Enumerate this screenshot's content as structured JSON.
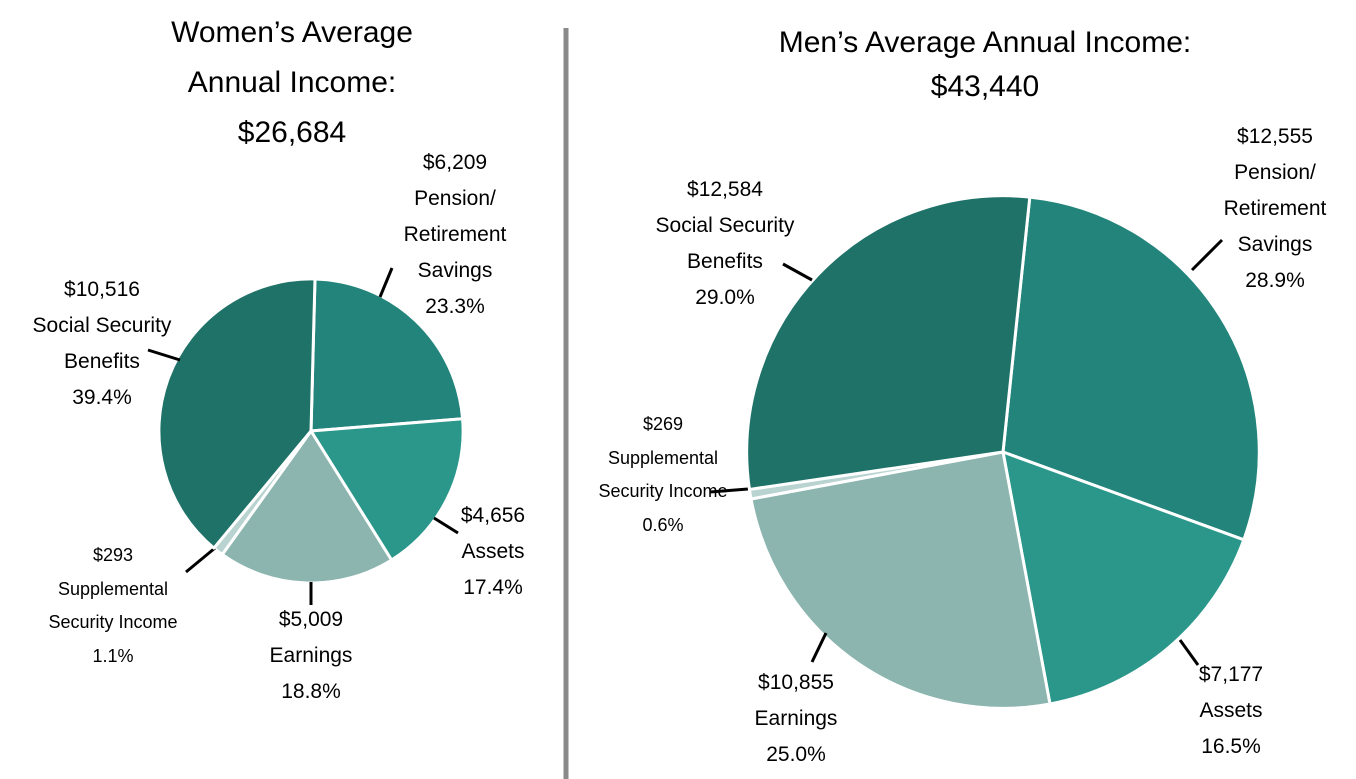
{
  "chart_data": [
    {
      "type": "pie",
      "title": "Women’s Average Annual Income:",
      "total": 26684,
      "total_label": "$26,684",
      "categories": [
        "Pension/ Retirement Savings",
        "Assets",
        "Earnings",
        "Supplemental Security Income",
        "Social Security Benefits"
      ],
      "values": [
        23.3,
        17.4,
        18.8,
        1.1,
        39.4
      ],
      "value_labels": [
        "23.3%",
        "17.4%",
        "18.8%",
        "1.1%",
        "39.4%"
      ],
      "amounts": [
        6209,
        4656,
        5009,
        293,
        10516
      ],
      "amount_labels": [
        "$6,209",
        "$4,656",
        "$5,009",
        "$293",
        "$10,516"
      ],
      "colors": [
        "#22847a",
        "#2a978a",
        "#8bb5ae",
        "#b9d4d0",
        "#1f7268"
      ]
    },
    {
      "type": "pie",
      "title": "Men’s Average Annual Income:",
      "total": 43440,
      "total_label": "$43,440",
      "categories": [
        "Pension/ Retirement Savings",
        "Assets",
        "Earnings",
        "Supplemental Security Income",
        "Social Security Benefits"
      ],
      "values": [
        28.9,
        16.5,
        25.0,
        0.6,
        29.0
      ],
      "value_labels": [
        "28.9%",
        "16.5%",
        "25.0%",
        "0.6%",
        "29.0%"
      ],
      "amounts": [
        12555,
        7177,
        10855,
        269,
        12584
      ],
      "amount_labels": [
        "$12,555",
        "$7,177",
        "$10,855",
        "$269",
        "$12,584"
      ],
      "colors": [
        "#22847a",
        "#2a978a",
        "#8bb5ae",
        "#b9d4d0",
        "#1f7268"
      ]
    }
  ]
}
